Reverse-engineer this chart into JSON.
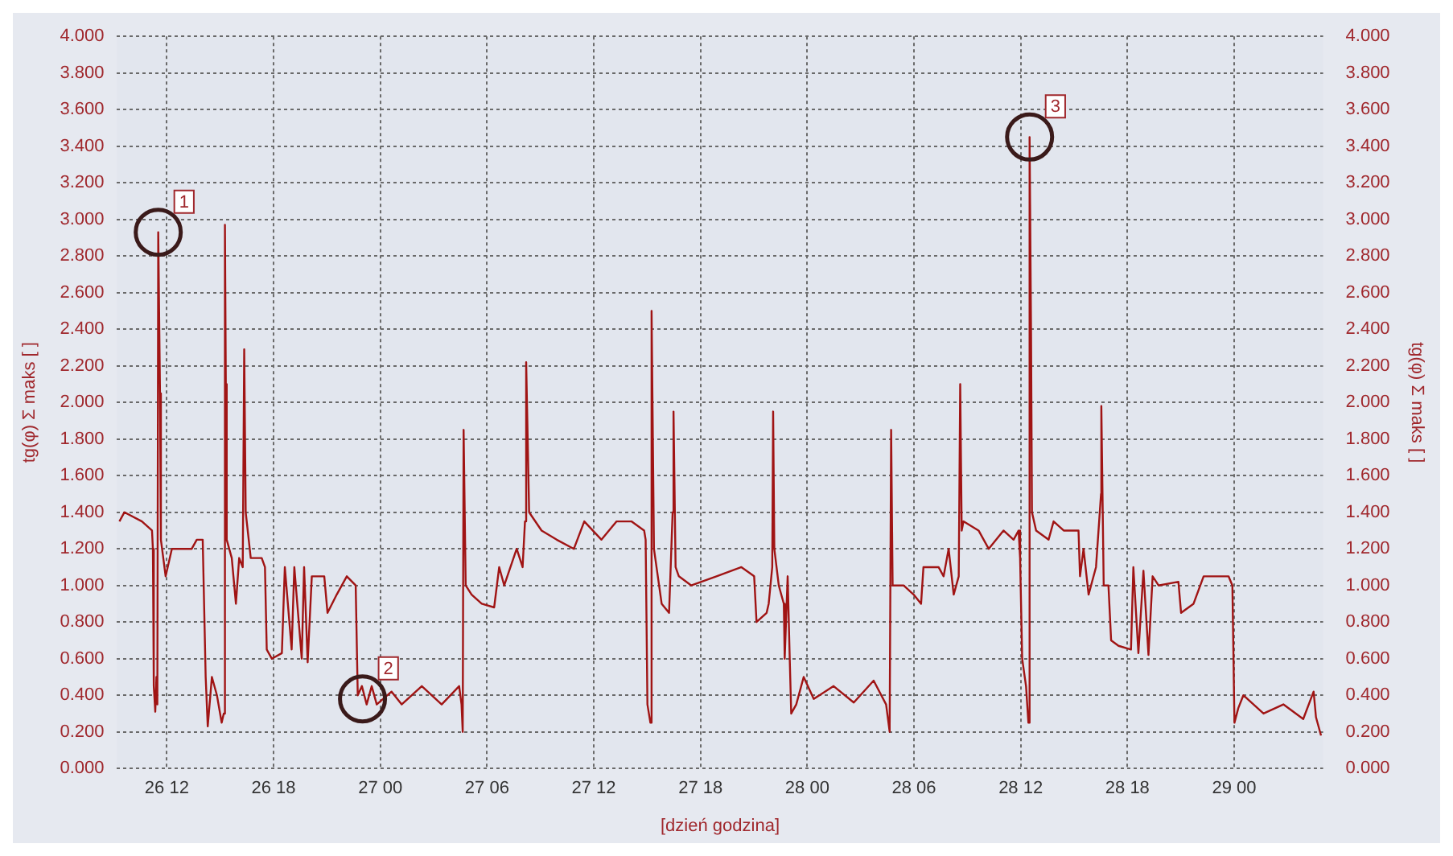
{
  "chart_data": {
    "type": "line",
    "xlabel": "[dzień godzina]",
    "ylabel": "tg(φ) Σ maks [ ]",
    "y2label": "tg(φ) Σ maks [ ]",
    "xlim": [
      "--01-26T09:12",
      "--01-29T05:00"
    ],
    "xticks": [
      {
        "value": "--01-26T12:00",
        "label": "26 12"
      },
      {
        "value": "--01-26T18:00",
        "label": "26 18"
      },
      {
        "value": "--01-27T00:00",
        "label": "27 00"
      },
      {
        "value": "--01-27T06:00",
        "label": "27 06"
      },
      {
        "value": "--01-27T12:00",
        "label": "27 12"
      },
      {
        "value": "--01-27T18:00",
        "label": "27 18"
      },
      {
        "value": "--01-28T00:00",
        "label": "28 00"
      },
      {
        "value": "--01-28T06:00",
        "label": "28 06"
      },
      {
        "value": "--01-28T12:00",
        "label": "28 12"
      },
      {
        "value": "--01-28T18:00",
        "label": "28 18"
      },
      {
        "value": "--01-29T00:00",
        "label": "29 00"
      }
    ],
    "ylim": [
      0,
      4
    ],
    "yticks": [
      {
        "value": 0,
        "label": "0.000"
      },
      {
        "value": 0.2,
        "label": "0.200"
      },
      {
        "value": 0.4,
        "label": "0.400"
      },
      {
        "value": 0.6,
        "label": "0.600"
      },
      {
        "value": 0.8,
        "label": "0.800"
      },
      {
        "value": 1,
        "label": "1.000"
      },
      {
        "value": 1.2,
        "label": "1.200"
      },
      {
        "value": 1.4,
        "label": "1.400"
      },
      {
        "value": 1.6,
        "label": "1.600"
      },
      {
        "value": 1.8,
        "label": "1.800"
      },
      {
        "value": 2,
        "label": "2.000"
      },
      {
        "value": 2.2,
        "label": "2.200"
      },
      {
        "value": 2.4,
        "label": "2.400"
      },
      {
        "value": 2.6,
        "label": "2.600"
      },
      {
        "value": 2.8,
        "label": "2.800"
      },
      {
        "value": 3,
        "label": "3.000"
      },
      {
        "value": 3.2,
        "label": "3.200"
      },
      {
        "value": 3.4,
        "label": "3.400"
      },
      {
        "value": 3.6,
        "label": "3.600"
      },
      {
        "value": 3.8,
        "label": "3.800"
      },
      {
        "value": 4,
        "label": "4.000"
      }
    ],
    "y2lim": [
      0,
      4
    ],
    "y2ticks": [
      {
        "value": 0,
        "label": "0.000"
      },
      {
        "value": 0.2,
        "label": "0.200"
      },
      {
        "value": 0.4,
        "label": "0.400"
      },
      {
        "value": 0.6,
        "label": "0.600"
      },
      {
        "value": 0.8,
        "label": "0.800"
      },
      {
        "value": 1,
        "label": "1.000"
      },
      {
        "value": 1.2,
        "label": "1.200"
      },
      {
        "value": 1.4,
        "label": "1.400"
      },
      {
        "value": 1.6,
        "label": "1.600"
      },
      {
        "value": 1.8,
        "label": "1.800"
      },
      {
        "value": 2,
        "label": "2.000"
      },
      {
        "value": 2.2,
        "label": "2.200"
      },
      {
        "value": 2.4,
        "label": "2.400"
      },
      {
        "value": 2.6,
        "label": "2.600"
      },
      {
        "value": 2.8,
        "label": "2.800"
      },
      {
        "value": 3,
        "label": "3.000"
      },
      {
        "value": 3.2,
        "label": "3.200"
      },
      {
        "value": 3.4,
        "label": "3.400"
      },
      {
        "value": 3.6,
        "label": "3.600"
      },
      {
        "value": 3.8,
        "label": "3.800"
      },
      {
        "value": 4,
        "label": "4.000"
      }
    ],
    "grid": true,
    "legend": false,
    "marker": "none",
    "line_style": "solid",
    "annotations": [
      {
        "text": "1",
        "x": "--01-26T11:31",
        "y": 2.93
      },
      {
        "text": "2",
        "x": "--01-26T23:00",
        "y": 0.38
      },
      {
        "text": "3",
        "x": "--01-28T12:30",
        "y": 3.45
      }
    ],
    "series": [
      {
        "color": "#a01414",
        "x": [
          "--01-26T09:20",
          "--01-26T09:37",
          "--01-26T10:36",
          "--01-26T11:10",
          "--01-26T11:13",
          "--01-26T11:16",
          "--01-26T11:21",
          "--01-26T11:25",
          "--01-26T11:28",
          "--01-26T11:31",
          "--01-26T11:37",
          "--01-26T11:40",
          "--01-26T11:56",
          "--01-26T12:17",
          "--01-26T13:24",
          "--01-26T13:41",
          "--01-26T14:01",
          "--01-26T14:11",
          "--01-26T14:18",
          "--01-26T14:32",
          "--01-26T14:49",
          "--01-26T15:05",
          "--01-26T15:12",
          "--01-26T15:16",
          "--01-26T15:19",
          "--01-26T15:22",
          "--01-26T15:39",
          "--01-26T15:53",
          "--01-26T16:04",
          "--01-26T16:16",
          "--01-26T16:21",
          "--01-26T16:26",
          "--01-26T16:43",
          "--01-26T17:20",
          "--01-26T17:31",
          "--01-26T17:37",
          "--01-26T17:54",
          "--01-26T18:28",
          "--01-26T18:38",
          "--01-26T19:01",
          "--01-26T19:10",
          "--01-26T19:35",
          "--01-26T19:43",
          "--01-26T19:55",
          "--01-26T20:09",
          "--01-26T20:51",
          "--01-26T21:02",
          "--01-26T21:33",
          "--01-26T22:07",
          "--01-26T22:37",
          "--01-26T22:44",
          "--01-26T22:58",
          "--01-26T23:14",
          "--01-26T23:31",
          "--01-26T23:48",
          "--01-27T00:38",
          "--01-27T01:12",
          "--01-27T02:20",
          "--01-27T03:27",
          "--01-27T04:26",
          "--01-27T04:34",
          "--01-27T04:38",
          "--01-27T04:41",
          "--01-27T04:48",
          "--01-27T05:08",
          "--01-27T05:42",
          "--01-27T06:24",
          "--01-27T06:41",
          "--01-27T06:58",
          "--01-27T07:40",
          "--01-27T08:00",
          "--01-27T08:08",
          "--01-27T08:12",
          "--01-27T08:22",
          "--01-27T09:04",
          "--01-27T09:55",
          "--01-27T10:53",
          "--01-27T11:28",
          "--01-27T12:26",
          "--01-27T13:17",
          "--01-27T14:07",
          "--01-27T14:50",
          "--01-27T14:55",
          "--01-27T15:01",
          "--01-27T15:11",
          "--01-27T15:15",
          "--01-27T15:23",
          "--01-27T15:49",
          "--01-27T16:14",
          "--01-27T16:26",
          "--01-27T16:29",
          "--01-27T16:36",
          "--01-27T16:47",
          "--01-27T17:29",
          "--01-27T18:54",
          "--01-27T20:18",
          "--01-27T21:01",
          "--01-27T21:09",
          "--01-27T21:43",
          "--01-27T21:50",
          "--01-27T22:02",
          "--01-27T22:05",
          "--01-27T22:09",
          "--01-27T22:24",
          "--01-27T22:41",
          "--01-27T22:44",
          "--01-27T22:54",
          "--01-27T23:01",
          "--01-27T23:06",
          "--01-27T23:23",
          "--01-27T23:48",
          "--01-28T00:22",
          "--01-28T01:29",
          "--01-28T02:37",
          "--01-28T03:44",
          "--01-28T04:26",
          "--01-28T04:38",
          "--01-28T04:43",
          "--01-28T04:48",
          "--01-28T05:25",
          "--01-28T05:59",
          "--01-28T06:24",
          "--01-28T06:32",
          "--01-28T07:23",
          "--01-28T07:40",
          "--01-28T07:57",
          "--01-28T08:14",
          "--01-28T08:31",
          "--01-28T08:36",
          "--01-28T08:41",
          "--01-28T08:47",
          "--01-28T09:38",
          "--01-28T10:12",
          "--01-28T11:02",
          "--01-28T11:36",
          "--01-28T11:53",
          "--01-28T11:58",
          "--01-28T12:05",
          "--01-28T12:18",
          "--01-28T12:26",
          "--01-28T12:30",
          "--01-28T12:35",
          "--01-28T12:38",
          "--01-28T12:52",
          "--01-28T13:34",
          "--01-28T13:51",
          "--01-28T14:25",
          "--01-28T15:15",
          "--01-28T15:20",
          "--01-28T15:32",
          "--01-28T15:49",
          "--01-28T16:14",
          "--01-28T16:31",
          "--01-28T16:32",
          "--01-28T16:40",
          "--01-28T16:56",
          "--01-28T17:05",
          "--01-28T17:30",
          "--01-28T18:12",
          "--01-28T18:20",
          "--01-28T18:37",
          "--01-28T18:54",
          "--01-28T19:11",
          "--01-28T19:25",
          "--01-28T19:45",
          "--01-28T20:52",
          "--01-28T21:01",
          "--01-28T21:43",
          "--01-28T22:17",
          "--01-28T23:41",
          "--01-28T23:54",
          "--01-29T00:01",
          "--01-29T00:14",
          "--01-29T00:31",
          "--01-29T01:39",
          "--01-29T02:46",
          "--01-29T03:53",
          "--01-29T04:28",
          "--01-29T04:36",
          "--01-29T04:53"
        ],
        "values": [
          1.35,
          1.4,
          1.35,
          1.3,
          1.2,
          0.45,
          0.31,
          0.5,
          0.35,
          2.93,
          2.05,
          1.25,
          1.05,
          1.2,
          1.2,
          1.25,
          1.25,
          0.5,
          0.23,
          0.5,
          0.4,
          0.25,
          0.3,
          2.97,
          2.1,
          1.25,
          1.15,
          0.9,
          1.15,
          1.1,
          2.29,
          1.4,
          1.15,
          1.15,
          1.1,
          0.65,
          0.6,
          0.63,
          1.1,
          0.65,
          1.1,
          0.6,
          1.1,
          0.58,
          1.05,
          1.05,
          0.85,
          0.95,
          1.05,
          1.0,
          0.4,
          0.45,
          0.35,
          0.45,
          0.35,
          0.42,
          0.35,
          0.45,
          0.35,
          0.45,
          0.35,
          0.2,
          1.85,
          1.0,
          0.95,
          0.9,
          0.88,
          1.1,
          1.0,
          1.2,
          1.1,
          1.35,
          2.22,
          1.4,
          1.3,
          1.25,
          1.2,
          1.35,
          1.25,
          1.35,
          1.35,
          1.3,
          1.25,
          0.35,
          0.25,
          2.5,
          1.2,
          0.9,
          0.85,
          1.4,
          1.95,
          1.1,
          1.05,
          1.0,
          1.05,
          1.1,
          1.05,
          0.8,
          0.85,
          0.9,
          1.1,
          1.95,
          1.2,
          1.0,
          0.9,
          0.6,
          1.05,
          0.6,
          0.3,
          0.35,
          0.5,
          0.38,
          0.45,
          0.36,
          0.48,
          0.35,
          0.2,
          1.85,
          1.0,
          1.0,
          0.95,
          0.9,
          1.1,
          1.1,
          1.05,
          1.2,
          0.95,
          1.05,
          2.1,
          1.3,
          1.35,
          1.3,
          1.2,
          1.3,
          1.25,
          1.3,
          1.15,
          0.6,
          0.45,
          0.25,
          3.45,
          2.36,
          1.4,
          1.3,
          1.25,
          1.35,
          1.3,
          1.3,
          1.05,
          1.2,
          0.95,
          1.1,
          1.5,
          1.98,
          1.0,
          1.0,
          0.7,
          0.67,
          0.65,
          1.1,
          0.63,
          1.08,
          0.62,
          1.05,
          1.0,
          1.02,
          0.85,
          0.9,
          1.05,
          1.05,
          1.0,
          0.25,
          0.33,
          0.4,
          0.3,
          0.35,
          0.27,
          0.42,
          0.28,
          0.18
        ]
      }
    ]
  }
}
